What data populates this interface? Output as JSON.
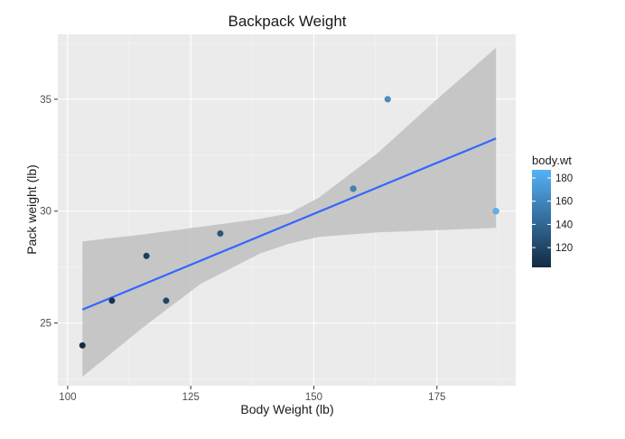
{
  "chart_data": {
    "type": "scatter",
    "title": "Backpack Weight",
    "xlabel": "Body Weight (lb)",
    "ylabel": "Pack weight (lb)",
    "xlim": [
      98,
      191
    ],
    "ylim": [
      22.2,
      37.9
    ],
    "x_ticks": [
      100,
      125,
      150,
      175
    ],
    "y_ticks": [
      25,
      30,
      35
    ],
    "grid": true,
    "points": [
      {
        "x": 103,
        "y": 24
      },
      {
        "x": 109,
        "y": 26
      },
      {
        "x": 116,
        "y": 28
      },
      {
        "x": 120,
        "y": 26
      },
      {
        "x": 131,
        "y": 29
      },
      {
        "x": 158,
        "y": 31
      },
      {
        "x": 165,
        "y": 35
      },
      {
        "x": 187,
        "y": 30
      }
    ],
    "trend_line": {
      "x": [
        103,
        187
      ],
      "y": [
        25.6,
        33.25
      ]
    },
    "confidence_band": {
      "x": [
        103,
        115,
        127,
        139,
        145,
        151,
        163,
        175,
        187
      ],
      "lower": [
        22.6,
        24.75,
        26.75,
        28.1,
        28.55,
        28.85,
        29.05,
        29.15,
        29.25
      ],
      "upper": [
        28.65,
        28.95,
        29.3,
        29.65,
        29.9,
        30.6,
        32.6,
        35.0,
        37.3
      ]
    },
    "legend": {
      "title": "body.wt",
      "placement": "right",
      "range": [
        103,
        187
      ],
      "ticks": [
        120,
        140,
        160,
        180
      ],
      "color_low": "#132b43",
      "color_high": "#56b1f7"
    },
    "colors": {
      "panel": "#ebebeb",
      "grid_major": "#ffffff",
      "band": "#c0c0c0",
      "trend": "#3366ff"
    }
  }
}
